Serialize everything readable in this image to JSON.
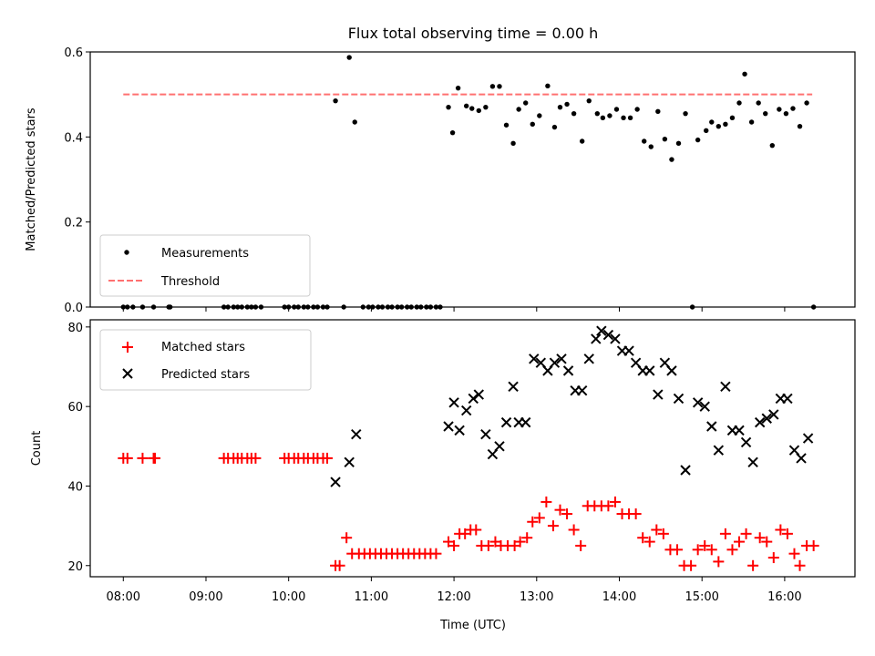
{
  "chart_data": [
    {
      "type": "scatter",
      "title": "Flux total observing time = 0.00 h",
      "xlabel": "",
      "ylabel": "Matched/Predicted stars",
      "ylim": [
        0,
        0.6
      ],
      "yticks": [
        "0.0",
        "0.2",
        "0.4",
        "0.6"
      ],
      "xlim": [
        "07:36",
        "16:51"
      ],
      "threshold": {
        "name": "Threshold",
        "value": 0.5,
        "x_range": [
          "08:00",
          "16:20"
        ],
        "color": "#ff7070"
      },
      "series": [
        {
          "name": "Measurements",
          "color": "#000000",
          "points": [
            [
              "08:00",
              0
            ],
            [
              "08:03",
              0
            ],
            [
              "08:07",
              0
            ],
            [
              "08:14",
              0
            ],
            [
              "08:22",
              0
            ],
            [
              "08:33",
              0
            ],
            [
              "08:34",
              0
            ],
            [
              "09:13",
              0
            ],
            [
              "09:16",
              0
            ],
            [
              "09:20",
              0
            ],
            [
              "09:23",
              0
            ],
            [
              "09:26",
              0
            ],
            [
              "09:30",
              0
            ],
            [
              "09:33",
              0
            ],
            [
              "09:36",
              0
            ],
            [
              "09:40",
              0
            ],
            [
              "09:57",
              0
            ],
            [
              "10:00",
              0
            ],
            [
              "10:04",
              0
            ],
            [
              "10:07",
              0
            ],
            [
              "10:11",
              0
            ],
            [
              "10:14",
              0
            ],
            [
              "10:18",
              0
            ],
            [
              "10:21",
              0
            ],
            [
              "10:25",
              0
            ],
            [
              "10:28",
              0
            ],
            [
              "10:34",
              0.485
            ],
            [
              "10:40",
              0
            ],
            [
              "10:44",
              0.587
            ],
            [
              "10:48",
              0.435
            ],
            [
              "10:54",
              0
            ],
            [
              "10:58",
              0
            ],
            [
              "11:01",
              0
            ],
            [
              "11:05",
              0
            ],
            [
              "11:08",
              0
            ],
            [
              "11:12",
              0
            ],
            [
              "11:15",
              0
            ],
            [
              "11:19",
              0
            ],
            [
              "11:22",
              0
            ],
            [
              "11:26",
              0
            ],
            [
              "11:29",
              0
            ],
            [
              "11:33",
              0
            ],
            [
              "11:36",
              0
            ],
            [
              "11:40",
              0
            ],
            [
              "11:43",
              0
            ],
            [
              "11:47",
              0
            ],
            [
              "11:50",
              0
            ],
            [
              "11:56",
              0.47
            ],
            [
              "11:59",
              0.41
            ],
            [
              "12:03",
              0.515
            ],
            [
              "12:09",
              0.473
            ],
            [
              "12:13",
              0.467
            ],
            [
              "12:18",
              0.462
            ],
            [
              "12:23",
              0.47
            ],
            [
              "12:28",
              0.519
            ],
            [
              "12:33",
              0.519
            ],
            [
              "12:38",
              0.428
            ],
            [
              "12:43",
              0.385
            ],
            [
              "12:47",
              0.465
            ],
            [
              "12:52",
              0.48
            ],
            [
              "12:57",
              0.43
            ],
            [
              "13:02",
              0.45
            ],
            [
              "13:08",
              0.52
            ],
            [
              "13:13",
              0.423
            ],
            [
              "13:17",
              0.47
            ],
            [
              "13:22",
              0.477
            ],
            [
              "13:27",
              0.455
            ],
            [
              "13:33",
              0.39
            ],
            [
              "13:38",
              0.485
            ],
            [
              "13:44",
              0.455
            ],
            [
              "13:48",
              0.445
            ],
            [
              "13:53",
              0.45
            ],
            [
              "13:58",
              0.465
            ],
            [
              "14:03",
              0.445
            ],
            [
              "14:08",
              0.445
            ],
            [
              "14:13",
              0.465
            ],
            [
              "14:18",
              0.39
            ],
            [
              "14:23",
              0.377
            ],
            [
              "14:28",
              0.46
            ],
            [
              "14:33",
              0.395
            ],
            [
              "14:38",
              0.347
            ],
            [
              "14:43",
              0.385
            ],
            [
              "14:48",
              0.455
            ],
            [
              "14:53",
              0
            ],
            [
              "14:57",
              0.393
            ],
            [
              "15:03",
              0.415
            ],
            [
              "15:07",
              0.435
            ],
            [
              "15:12",
              0.425
            ],
            [
              "15:17",
              0.43
            ],
            [
              "15:22",
              0.445
            ],
            [
              "15:27",
              0.48
            ],
            [
              "15:31",
              0.548
            ],
            [
              "15:36",
              0.435
            ],
            [
              "15:41",
              0.48
            ],
            [
              "15:46",
              0.455
            ],
            [
              "15:51",
              0.38
            ],
            [
              "15:56",
              0.465
            ],
            [
              "16:01",
              0.455
            ],
            [
              "16:06",
              0.467
            ],
            [
              "16:11",
              0.425
            ],
            [
              "16:16",
              0.48
            ],
            [
              "16:21",
              0
            ]
          ]
        }
      ],
      "legend": "lower-left"
    },
    {
      "type": "scatter",
      "title": "",
      "xlabel": "Time (UTC)",
      "ylabel": "Count",
      "ylim": [
        17.2,
        81.8
      ],
      "yticks": [
        "20",
        "40",
        "60",
        "80"
      ],
      "xlim": [
        "07:36",
        "16:51"
      ],
      "xticks": [
        "08:00",
        "09:00",
        "10:00",
        "11:00",
        "12:00",
        "13:00",
        "14:00",
        "15:00",
        "16:00"
      ],
      "series": [
        {
          "name": "Matched stars",
          "marker": "plus",
          "color": "#ff0000",
          "points": [
            [
              "08:00",
              47
            ],
            [
              "08:03",
              47
            ],
            [
              "08:14",
              47
            ],
            [
              "08:22",
              47
            ],
            [
              "08:23",
              47
            ],
            [
              "09:13",
              47
            ],
            [
              "09:16",
              47
            ],
            [
              "09:20",
              47
            ],
            [
              "09:23",
              47
            ],
            [
              "09:26",
              47
            ],
            [
              "09:30",
              47
            ],
            [
              "09:33",
              47
            ],
            [
              "09:36",
              47
            ],
            [
              "09:57",
              47
            ],
            [
              "10:00",
              47
            ],
            [
              "10:04",
              47
            ],
            [
              "10:07",
              47
            ],
            [
              "10:11",
              47
            ],
            [
              "10:14",
              47
            ],
            [
              "10:18",
              47
            ],
            [
              "10:21",
              47
            ],
            [
              "10:25",
              47
            ],
            [
              "10:28",
              47
            ],
            [
              "10:34",
              20
            ],
            [
              "10:37",
              20
            ],
            [
              "10:42",
              27
            ],
            [
              "10:46",
              23
            ],
            [
              "10:51",
              23
            ],
            [
              "10:55",
              23
            ],
            [
              "10:59",
              23
            ],
            [
              "11:03",
              23
            ],
            [
              "11:07",
              23
            ],
            [
              "11:11",
              23
            ],
            [
              "11:15",
              23
            ],
            [
              "11:19",
              23
            ],
            [
              "11:23",
              23
            ],
            [
              "11:27",
              23
            ],
            [
              "11:31",
              23
            ],
            [
              "11:35",
              23
            ],
            [
              "11:39",
              23
            ],
            [
              "11:43",
              23
            ],
            [
              "11:47",
              23
            ],
            [
              "11:56",
              26
            ],
            [
              "12:00",
              25
            ],
            [
              "12:04",
              28
            ],
            [
              "12:08",
              28
            ],
            [
              "12:12",
              29
            ],
            [
              "12:16",
              29
            ],
            [
              "12:20",
              25
            ],
            [
              "12:25",
              25
            ],
            [
              "12:30",
              26
            ],
            [
              "12:34",
              25
            ],
            [
              "12:39",
              25
            ],
            [
              "12:44",
              25
            ],
            [
              "12:48",
              26
            ],
            [
              "12:53",
              27
            ],
            [
              "12:57",
              31
            ],
            [
              "13:02",
              32
            ],
            [
              "13:07",
              36
            ],
            [
              "13:12",
              30
            ],
            [
              "13:17",
              34
            ],
            [
              "13:22",
              33
            ],
            [
              "13:27",
              29
            ],
            [
              "13:32",
              25
            ],
            [
              "13:37",
              35
            ],
            [
              "13:42",
              35
            ],
            [
              "13:47",
              35
            ],
            [
              "13:52",
              35
            ],
            [
              "13:57",
              36
            ],
            [
              "14:02",
              33
            ],
            [
              "14:07",
              33
            ],
            [
              "14:12",
              33
            ],
            [
              "14:17",
              27
            ],
            [
              "14:22",
              26
            ],
            [
              "14:27",
              29
            ],
            [
              "14:32",
              28
            ],
            [
              "14:37",
              24
            ],
            [
              "14:42",
              24
            ],
            [
              "14:47",
              20
            ],
            [
              "14:52",
              20
            ],
            [
              "14:57",
              24
            ],
            [
              "15:02",
              25
            ],
            [
              "15:07",
              24
            ],
            [
              "15:12",
              21
            ],
            [
              "15:17",
              28
            ],
            [
              "15:22",
              24
            ],
            [
              "15:27",
              26
            ],
            [
              "15:32",
              28
            ],
            [
              "15:37",
              20
            ],
            [
              "15:42",
              27
            ],
            [
              "15:47",
              26
            ],
            [
              "15:52",
              22
            ],
            [
              "15:57",
              29
            ],
            [
              "16:02",
              28
            ],
            [
              "16:07",
              23
            ],
            [
              "16:11",
              20
            ],
            [
              "16:16",
              25
            ],
            [
              "16:21",
              25
            ]
          ]
        },
        {
          "name": "Predicted stars",
          "marker": "x",
          "color": "#000000",
          "points": [
            [
              "10:34",
              41
            ],
            [
              "10:44",
              46
            ],
            [
              "10:49",
              53
            ],
            [
              "11:56",
              55
            ],
            [
              "12:00",
              61
            ],
            [
              "12:04",
              54
            ],
            [
              "12:09",
              59
            ],
            [
              "12:14",
              62
            ],
            [
              "12:18",
              63
            ],
            [
              "12:23",
              53
            ],
            [
              "12:28",
              48
            ],
            [
              "12:33",
              50
            ],
            [
              "12:38",
              56
            ],
            [
              "12:43",
              65
            ],
            [
              "12:47",
              56
            ],
            [
              "12:52",
              56
            ],
            [
              "12:58",
              72
            ],
            [
              "13:03",
              71
            ],
            [
              "13:08",
              69
            ],
            [
              "13:13",
              71
            ],
            [
              "13:18",
              72
            ],
            [
              "13:23",
              69
            ],
            [
              "13:28",
              64
            ],
            [
              "13:33",
              64
            ],
            [
              "13:38",
              72
            ],
            [
              "13:43",
              77
            ],
            [
              "13:47",
              79
            ],
            [
              "13:52",
              78
            ],
            [
              "13:57",
              77
            ],
            [
              "14:02",
              74
            ],
            [
              "14:07",
              74
            ],
            [
              "14:12",
              71
            ],
            [
              "14:17",
              69
            ],
            [
              "14:22",
              69
            ],
            [
              "14:28",
              63
            ],
            [
              "14:33",
              71
            ],
            [
              "14:38",
              69
            ],
            [
              "14:43",
              62
            ],
            [
              "14:48",
              44
            ],
            [
              "14:57",
              61
            ],
            [
              "15:02",
              60
            ],
            [
              "15:07",
              55
            ],
            [
              "15:12",
              49
            ],
            [
              "15:17",
              65
            ],
            [
              "15:22",
              54
            ],
            [
              "15:27",
              54
            ],
            [
              "15:32",
              51
            ],
            [
              "15:37",
              46
            ],
            [
              "15:42",
              56
            ],
            [
              "15:47",
              57
            ],
            [
              "15:52",
              58
            ],
            [
              "15:57",
              62
            ],
            [
              "16:02",
              62
            ],
            [
              "16:07",
              49
            ],
            [
              "16:12",
              47
            ],
            [
              "16:17",
              52
            ]
          ]
        }
      ],
      "legend": "upper-left"
    }
  ]
}
